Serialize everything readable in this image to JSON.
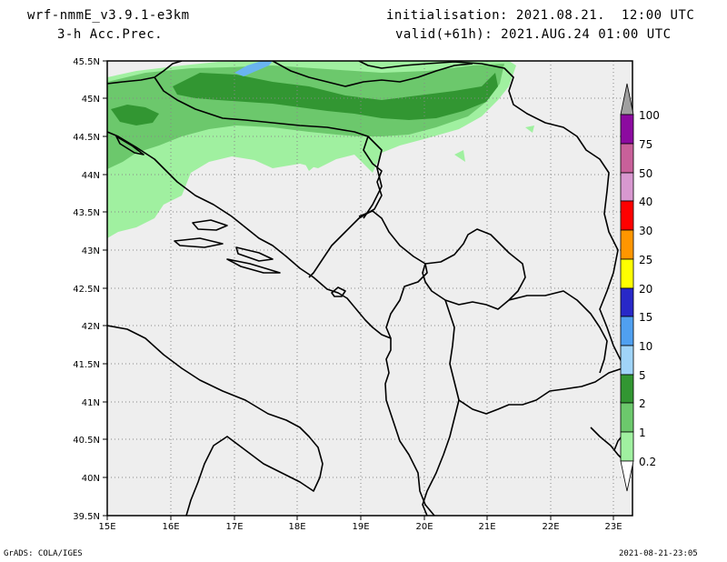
{
  "header": {
    "model": "wrf-nmmE_v3.9.1-e3km",
    "field": "3-h Acc.Prec.",
    "init": "initialisation: 2021.08.21.  12:00 UTC",
    "valid": "valid(+61h): 2021.AUG.24 01:00 UTC"
  },
  "footer": {
    "credit": "GrADS: COLA/IGES",
    "timestamp": "2021-08-21-23:05"
  },
  "axes": {
    "lat_labels": [
      "45.5N",
      "45N",
      "44.5N",
      "44N",
      "43.5N",
      "43N",
      "42.5N",
      "42N",
      "41.5N",
      "41N",
      "40.5N",
      "40N",
      "39.5N"
    ],
    "lon_labels": [
      "15E",
      "16E",
      "17E",
      "18E",
      "19E",
      "20E",
      "21E",
      "22E",
      "23E"
    ]
  },
  "colorbar": {
    "labels": [
      "100",
      "75",
      "50",
      "40",
      "30",
      "25",
      "20",
      "15",
      "10",
      "5",
      "2",
      "1",
      "0.2"
    ],
    "colors": [
      "#a0a0a0",
      "#8c0aa0",
      "#c8609a",
      "#d898d0",
      "#ff0000",
      "#ff9600",
      "#ffff00",
      "#2828c8",
      "#50a0f0",
      "#a0d4f8",
      "#329632",
      "#6cc86c",
      "#a0f0a0"
    ]
  },
  "colors": {
    "land": "#eeeeee",
    "precip_light": "#a0f0a0",
    "precip_mid": "#6cc86c",
    "precip_heavy": "#329632",
    "lake": "#6ab4f0"
  }
}
